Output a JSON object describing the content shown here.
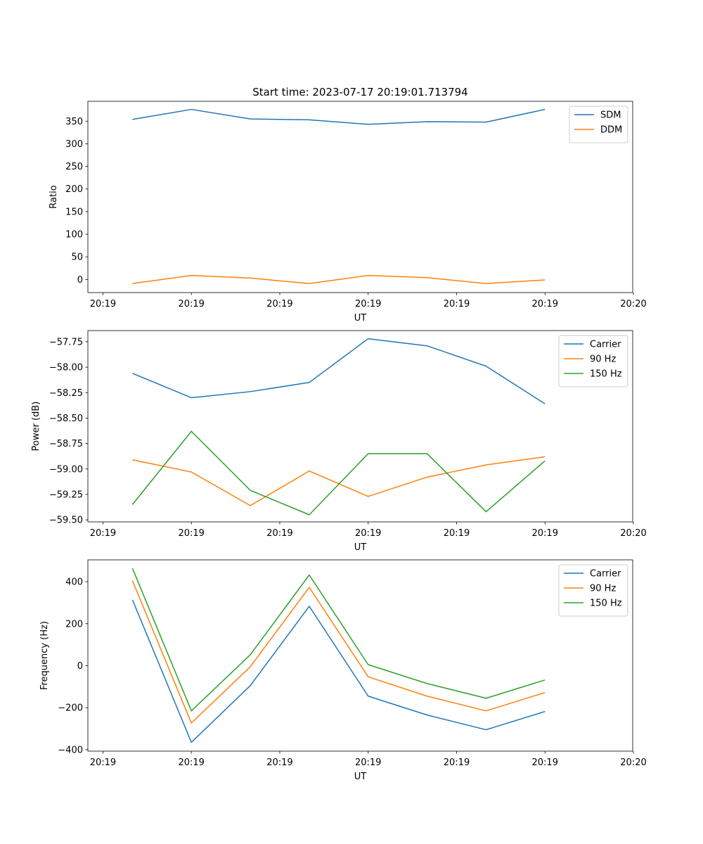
{
  "chart_data": [
    {
      "type": "line",
      "title": "Start time: 2023-07-17 20:19:01.713794",
      "xlabel": "UT",
      "ylabel": "Ratio",
      "legend_position": "top-right",
      "x_tick_labels": [
        "20:19",
        "20:19",
        "20:19",
        "20:19",
        "20:19",
        "20:19",
        "20:20"
      ],
      "y_ticks": [
        0,
        50,
        100,
        150,
        200,
        250,
        300,
        350
      ],
      "y_tick_labels": [
        "0",
        "50",
        "100",
        "150",
        "200",
        "250",
        "300",
        "350"
      ],
      "ylim": [
        -29,
        394
      ],
      "x": [
        1,
        2,
        3,
        4,
        5,
        6,
        7,
        8
      ],
      "xlim": [
        0.244,
        9.488
      ],
      "grid": false,
      "series": [
        {
          "name": "SDM",
          "color": "#1f77b4",
          "values": [
            354,
            376,
            355,
            353,
            343,
            349,
            348,
            376
          ]
        },
        {
          "name": "DDM",
          "color": "#ff7f0e",
          "values": [
            -9,
            9,
            3,
            -9,
            9,
            4,
            -9,
            -1
          ]
        }
      ]
    },
    {
      "type": "line",
      "title": "",
      "xlabel": "UT",
      "ylabel": "Power (dB)",
      "legend_position": "top-right",
      "x_tick_labels": [
        "20:19",
        "20:19",
        "20:19",
        "20:19",
        "20:19",
        "20:19",
        "20:20"
      ],
      "y_ticks": [
        -59.5,
        -59.25,
        -59.0,
        -58.75,
        -58.5,
        -58.25,
        -58.0,
        -57.75
      ],
      "y_tick_labels": [
        "−59.50",
        "−59.25",
        "−59.00",
        "−58.75",
        "−58.50",
        "−58.25",
        "−58.00",
        "−57.75"
      ],
      "ylim": [
        -59.52,
        -57.64
      ],
      "x": [
        1,
        2,
        3,
        4,
        5,
        6,
        7,
        8
      ],
      "xlim": [
        0.244,
        9.488
      ],
      "grid": false,
      "series": [
        {
          "name": "Carrier",
          "color": "#1f77b4",
          "values": [
            -58.06,
            -58.3,
            -58.24,
            -58.15,
            -57.72,
            -57.79,
            -57.99,
            -58.36
          ]
        },
        {
          "name": "90 Hz",
          "color": "#ff7f0e",
          "values": [
            -58.91,
            -59.03,
            -59.36,
            -59.02,
            -59.27,
            -59.08,
            -58.96,
            -58.88
          ]
        },
        {
          "name": "150 Hz",
          "color": "#2ca02c",
          "values": [
            -59.35,
            -58.63,
            -59.21,
            -59.45,
            -58.85,
            -58.85,
            -59.42,
            -58.92
          ]
        }
      ]
    },
    {
      "type": "line",
      "title": "",
      "xlabel": "UT",
      "ylabel": "Frequency (Hz)",
      "legend_position": "top-right",
      "x_tick_labels": [
        "20:19",
        "20:19",
        "20:19",
        "20:19",
        "20:19",
        "20:19",
        "20:20"
      ],
      "y_ticks": [
        -400,
        -200,
        0,
        200,
        400
      ],
      "y_tick_labels": [
        "−400",
        "−200",
        "0",
        "200",
        "400"
      ],
      "ylim": [
        -407,
        504
      ],
      "x": [
        1,
        2,
        3,
        4,
        5,
        6,
        7,
        8
      ],
      "xlim": [
        0.244,
        9.488
      ],
      "grid": false,
      "series": [
        {
          "name": "Carrier",
          "color": "#1f77b4",
          "values": [
            314,
            -365,
            -95,
            283,
            -145,
            -235,
            -305,
            -218
          ]
        },
        {
          "name": "90 Hz",
          "color": "#ff7f0e",
          "values": [
            405,
            -273,
            -5,
            373,
            -53,
            -145,
            -215,
            -128
          ]
        },
        {
          "name": "150 Hz",
          "color": "#2ca02c",
          "values": [
            464,
            -215,
            52,
            432,
            5,
            -85,
            -155,
            -68
          ]
        }
      ]
    }
  ]
}
